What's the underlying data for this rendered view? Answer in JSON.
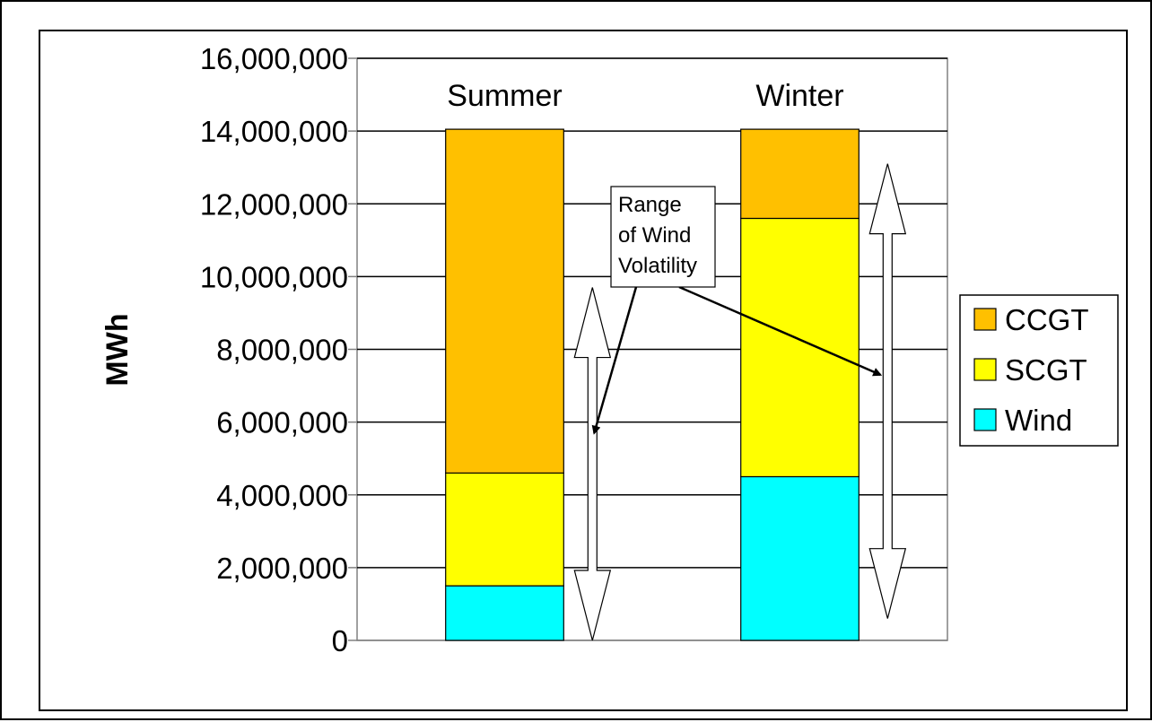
{
  "chart_data": {
    "type": "bar",
    "stacked": true,
    "categories": [
      "Summer",
      "Winter"
    ],
    "series": [
      {
        "name": "Wind",
        "color": "#00FFFF",
        "values": [
          1500000,
          4500000
        ]
      },
      {
        "name": "SCGT",
        "color": "#FFFF00",
        "values": [
          3100000,
          7100000
        ]
      },
      {
        "name": "CCGT",
        "color": "#FFC000",
        "values": [
          9450000,
          2450000
        ]
      }
    ],
    "ylabel": "MWh",
    "xlabel": "",
    "ylim": [
      0,
      16000000
    ],
    "yticks": [
      0,
      2000000,
      4000000,
      6000000,
      8000000,
      10000000,
      12000000,
      14000000,
      16000000
    ],
    "ytick_labels": [
      "0",
      "2,000,000",
      "4,000,000",
      "6,000,000",
      "8,000,000",
      "10,000,000",
      "12,000,000",
      "14,000,000",
      "16,000,000"
    ],
    "grid": true,
    "legend": {
      "placement": "right",
      "entries": [
        {
          "label": "CCGT",
          "color": "#FFC000"
        },
        {
          "label": "SCGT",
          "color": "#FFFF00"
        },
        {
          "label": "Wind",
          "color": "#00FFFF"
        }
      ]
    },
    "annotation": {
      "lines": [
        "Range",
        "of Wind",
        "Volatility"
      ]
    },
    "volatility_ranges": [
      {
        "category": "Summer",
        "range": [
          0,
          9700000
        ]
      },
      {
        "category": "Winter",
        "range": [
          600000,
          13100000
        ]
      }
    ]
  }
}
